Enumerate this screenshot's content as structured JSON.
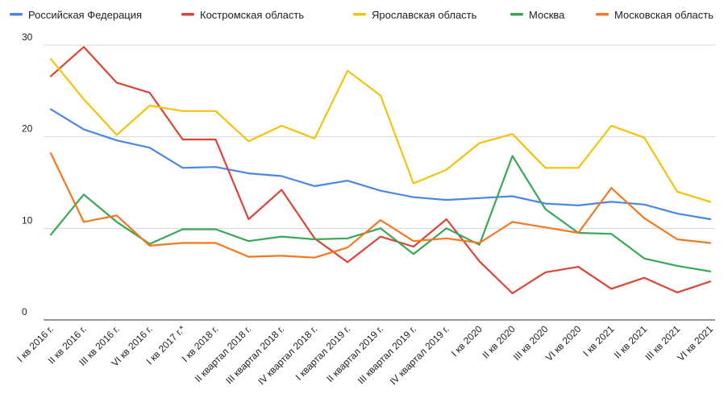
{
  "chart_data": {
    "type": "line",
    "title": "",
    "xlabel": "",
    "ylabel": "",
    "ylim": [
      0,
      30
    ],
    "yticks": [
      0,
      10,
      20,
      30
    ],
    "grid": true,
    "legend_position": "top",
    "categories": [
      "I кв 2016 г.",
      "II кв 2016 г.",
      "III кв 2016 г.",
      "VI кв 2016 г.",
      "I кв 2017 г.*",
      "I кв 2018 г.",
      "II квартал 2018 г.",
      "III квартал 2018 г.",
      "IV квартал 2018 г.",
      "I квартал 2019 г.",
      "II квартал 2019 г.",
      "III квартал 2019 г.",
      "IV квартал 2019 г.",
      "I кв 2020",
      "II кв 2020",
      "III кв 2020",
      "VI кв 2020",
      "I кв 2021",
      "II кв 2021",
      "III кв 2021",
      "VI кв 2021"
    ],
    "series": [
      {
        "name": "Российская Федерация",
        "color": "#4a86e8",
        "values": [
          23.0,
          20.8,
          19.6,
          18.8,
          16.6,
          16.7,
          16.0,
          15.7,
          14.6,
          15.2,
          14.1,
          13.4,
          13.1,
          13.3,
          13.5,
          12.7,
          12.5,
          12.9,
          12.6,
          11.6,
          11.0
        ]
      },
      {
        "name": "Костромская область",
        "color": "#db4437",
        "values": [
          26.6,
          29.8,
          25.9,
          24.8,
          19.7,
          19.7,
          11.0,
          14.2,
          8.9,
          6.3,
          9.1,
          8.0,
          11.0,
          6.4,
          2.9,
          5.2,
          5.8,
          3.4,
          4.6,
          3.0,
          4.2
        ]
      },
      {
        "name": "Ярославская область",
        "color": "#f4c20d",
        "values": [
          28.5,
          24.1,
          20.2,
          23.4,
          22.8,
          22.8,
          19.5,
          21.2,
          19.8,
          27.2,
          24.5,
          14.9,
          16.4,
          19.3,
          20.3,
          16.6,
          16.6,
          21.2,
          19.9,
          14.0,
          12.9
        ]
      },
      {
        "name": "Москва",
        "color": "#3aa757",
        "values": [
          9.3,
          13.7,
          10.7,
          8.3,
          9.9,
          9.9,
          8.6,
          9.1,
          8.8,
          8.9,
          10.0,
          7.2,
          10.0,
          8.2,
          17.9,
          12.1,
          9.5,
          9.4,
          6.7,
          5.9,
          5.3
        ]
      },
      {
        "name": "Московская область",
        "color": "#f5771f",
        "values": [
          18.2,
          10.7,
          11.4,
          8.1,
          8.4,
          8.4,
          6.9,
          7.0,
          6.8,
          7.9,
          10.9,
          8.6,
          8.9,
          8.4,
          10.7,
          10.1,
          9.5,
          14.4,
          11.1,
          8.8,
          8.4
        ]
      }
    ]
  }
}
